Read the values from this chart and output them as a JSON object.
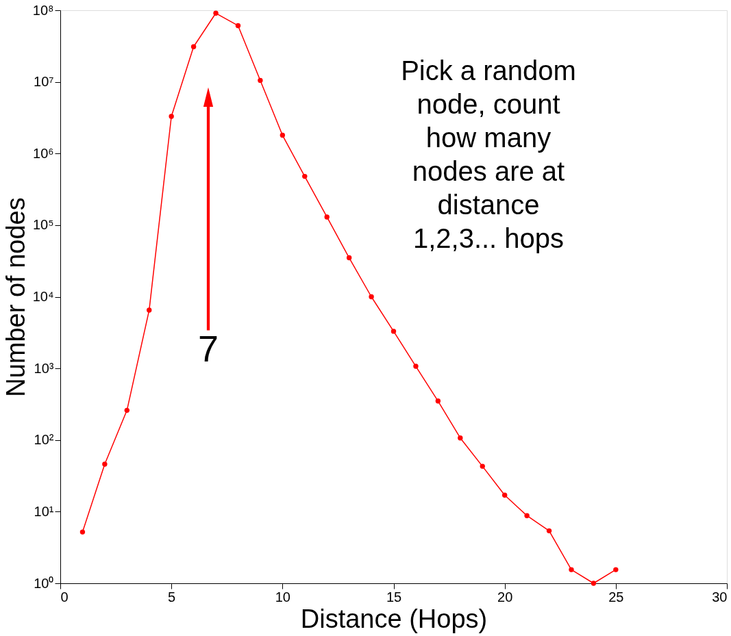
{
  "chart_data": {
    "type": "line",
    "xlabel": "Distance (Hops)",
    "ylabel": "Number of nodes",
    "x": [
      1,
      2,
      3,
      4,
      5,
      6,
      7,
      8,
      9,
      10,
      11,
      12,
      13,
      14,
      15,
      16,
      17,
      18,
      19,
      20,
      21,
      22,
      23,
      24,
      25
    ],
    "series": [
      {
        "color": "#ff0000",
        "values": [
          5.2,
          46,
          260,
          6500,
          3300000,
          31000000,
          91000000,
          61000000,
          10500000,
          1800000,
          480000,
          130000,
          35000,
          10000,
          3300,
          1070,
          350,
          107,
          43,
          17,
          8.8,
          5.4,
          1.55,
          1,
          1.55
        ]
      }
    ],
    "log": "y",
    "xlim": [
      0,
      30
    ],
    "xticks": [
      0,
      5,
      10,
      15,
      20,
      25,
      30
    ],
    "ylim": [
      1,
      100000000
    ],
    "yticks": [
      {
        "value": 1,
        "label": "10⁰"
      },
      {
        "value": 10,
        "label": "10¹"
      },
      {
        "value": 100,
        "label": "10²"
      },
      {
        "value": 1000,
        "label": "10³"
      },
      {
        "value": 10000,
        "label": "10⁴"
      },
      {
        "value": 100000,
        "label": "10⁵"
      },
      {
        "value": 1000000,
        "label": "10⁶"
      },
      {
        "value": 10000000,
        "label": "10⁷"
      },
      {
        "value": 100000000,
        "label": "10⁸"
      }
    ],
    "grid": false,
    "legend": false,
    "marker": "circle",
    "line_style": "solid",
    "annotations": [
      "7",
      "Pick a random\nnode, count\nhow many\nnodes are at\ndistance\n1,2,3... hops"
    ]
  }
}
